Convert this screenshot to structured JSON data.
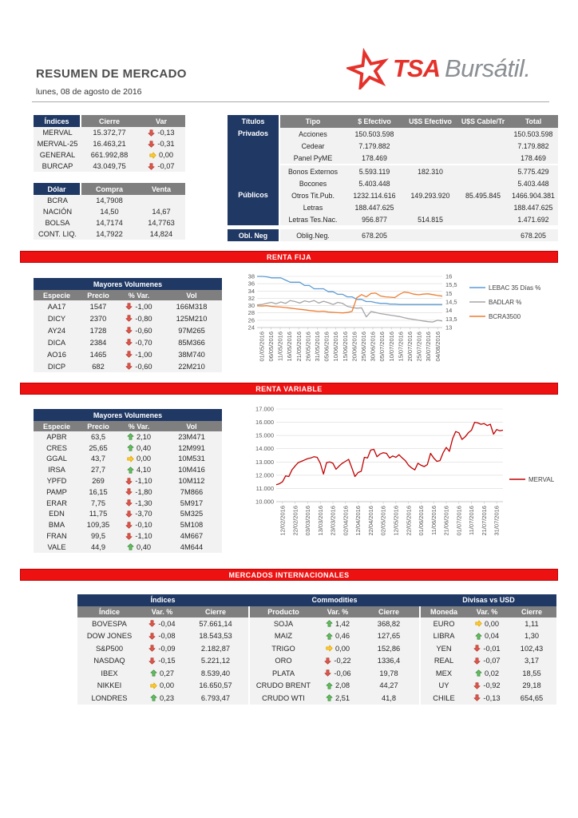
{
  "header": {
    "title": "RESUMEN DE MERCADO",
    "date": "lunes, 08 de agosto de 2016",
    "logo": {
      "star_icon": "tsa-star-logo",
      "tsa": "TSA",
      "bursatil": "Bursátil."
    }
  },
  "colors": {
    "navy": "#1F3864",
    "gray_header": "#7F7F7F",
    "row_bg": "#F2F2F2",
    "section_red": "#EE1111",
    "section_red_border": "#C00000",
    "logo_red": "#E4322B",
    "arrow_up": "#63BE5C",
    "arrow_up_border": "#3E8E41",
    "arrow_down": "#E2574C",
    "arrow_down_border": "#B03A2E",
    "arrow_flat": "#FFC933",
    "arrow_flat_border": "#D9A400",
    "chart_grid": "#D9D9D9",
    "merval_line": "#C00000"
  },
  "sections": {
    "renta_fija": {
      "band_label": "RENTA FIJA"
    },
    "renta_variable": {
      "band_label": "RENTA VARIABLE"
    },
    "internacionales": {
      "band_label": "MERCADOS INTERNACIONALES"
    }
  },
  "indices_table": {
    "headers": [
      "Índices",
      "Cierre",
      "Var"
    ],
    "rows": [
      [
        "MERVAL",
        "15.372,77",
        {
          "dir": "down",
          "v": "-0,13"
        }
      ],
      [
        "MERVAL-25",
        "16.463,21",
        {
          "dir": "down",
          "v": "-0,31"
        }
      ],
      [
        "GENERAL",
        "661.992,88",
        {
          "dir": "flat",
          "v": "0,00"
        }
      ],
      [
        "BURCAP",
        "43.049,75",
        {
          "dir": "down",
          "v": "-0,07"
        }
      ]
    ]
  },
  "dolar_table": {
    "headers": [
      "Dólar",
      "Compra",
      "Venta"
    ],
    "rows": [
      [
        "BCRA",
        "14,7908",
        ""
      ],
      [
        "NACIÓN",
        "14,50",
        "14,67"
      ],
      [
        "BOLSA",
        "14,7174",
        "14,7763"
      ],
      [
        "CONT. LIQ.",
        "14,7922",
        "14,824"
      ]
    ]
  },
  "titulos_table": {
    "corner": "Títulos",
    "headers": [
      "Tipo",
      "$ Efectivo",
      "U$S Efectivo",
      "U$S Cable/Tr",
      "Total"
    ],
    "groups": [
      {
        "label": "Privados",
        "rows": [
          [
            "Acciones",
            "150.503.598",
            "",
            "",
            "150.503.598"
          ],
          [
            "Cedear",
            "7.179.882",
            "",
            "",
            "7.179.882"
          ],
          [
            "Panel PyME",
            "178.469",
            "",
            "",
            "178.469"
          ]
        ]
      },
      {
        "label": "Públicos",
        "rows": [
          [
            "Bonos Externos",
            "5.593.119",
            "182.310",
            "",
            "5.775.429"
          ],
          [
            "Bocones",
            "5.403.448",
            "",
            "",
            "5.403.448"
          ],
          [
            "Otros Tit.Pub.",
            "1232.114.616",
            "149.293.920",
            "85.495.845",
            "1466.904.381"
          ],
          [
            "Letras",
            "188.447.625",
            "",
            "",
            "188.447.625"
          ],
          [
            "Letras Tes.Nac.",
            "956.877",
            "514.815",
            "",
            "1.471.692"
          ]
        ]
      },
      {
        "label": "Obl. Neg",
        "rows": [
          [
            "Oblig.Neg.",
            "678.205",
            "",
            "",
            "678.205"
          ]
        ]
      }
    ]
  },
  "renta_fija_table": {
    "title": "Mayores Volumenes",
    "headers": [
      "Especie",
      "Precio",
      "% Var.",
      "Vol"
    ],
    "rows": [
      [
        "AA17",
        "1547",
        {
          "dir": "down",
          "v": "-1,00"
        },
        "166M318"
      ],
      [
        "DICY",
        "2370",
        {
          "dir": "down",
          "v": "-0,80"
        },
        "125M210"
      ],
      [
        "AY24",
        "1728",
        {
          "dir": "down",
          "v": "-0,60"
        },
        "97M265"
      ],
      [
        "DICA",
        "2384",
        {
          "dir": "down",
          "v": "-0,70"
        },
        "85M366"
      ],
      [
        "AO16",
        "1465",
        {
          "dir": "down",
          "v": "-1,00"
        },
        "38M740"
      ],
      [
        "DICP",
        "682",
        {
          "dir": "down",
          "v": "-0,60"
        },
        "22M210"
      ]
    ]
  },
  "renta_variable_table": {
    "title": "Mayores Volumenes",
    "headers": [
      "Especie",
      "Precio",
      "% Var.",
      "Vol"
    ],
    "rows": [
      [
        "APBR",
        "63,5",
        {
          "dir": "up",
          "v": "2,10"
        },
        "23M471"
      ],
      [
        "CRES",
        "25,65",
        {
          "dir": "up",
          "v": "0,40"
        },
        "12M991"
      ],
      [
        "GGAL",
        "43,7",
        {
          "dir": "flat",
          "v": "0,00"
        },
        "10M531"
      ],
      [
        "IRSA",
        "27,7",
        {
          "dir": "up",
          "v": "4,10"
        },
        "10M416"
      ],
      [
        "YPFD",
        "269",
        {
          "dir": "down",
          "v": "-1,10"
        },
        "10M112"
      ],
      [
        "PAMP",
        "16,15",
        {
          "dir": "down",
          "v": "-1,80"
        },
        "7M866"
      ],
      [
        "ERAR",
        "7,75",
        {
          "dir": "down",
          "v": "-1,30"
        },
        "5M917"
      ],
      [
        "EDN",
        "11,75",
        {
          "dir": "down",
          "v": "-3,70"
        },
        "5M325"
      ],
      [
        "BMA",
        "109,35",
        {
          "dir": "down",
          "v": "-0,10"
        },
        "5M108"
      ],
      [
        "FRAN",
        "99,5",
        {
          "dir": "down",
          "v": "-1,10"
        },
        "4M667"
      ],
      [
        "VALE",
        "44,9",
        {
          "dir": "up",
          "v": "0,40"
        },
        "4M644"
      ]
    ]
  },
  "internacionales_table": {
    "groups": [
      {
        "title": "Índices",
        "headers": [
          "Índice",
          "Var. %",
          "Cierre"
        ],
        "rows": [
          [
            "BOVESPA",
            {
              "dir": "down",
              "v": "-0,04"
            },
            "57.661,14"
          ],
          [
            "DOW JONES",
            {
              "dir": "down",
              "v": "-0,08"
            },
            "18.543,53"
          ],
          [
            "S&P500",
            {
              "dir": "down",
              "v": "-0,09"
            },
            "2.182,87"
          ],
          [
            "NASDAQ",
            {
              "dir": "down",
              "v": "-0,15"
            },
            "5.221,12"
          ],
          [
            "IBEX",
            {
              "dir": "up",
              "v": "0,27"
            },
            "8.539,40"
          ],
          [
            "NIKKEI",
            {
              "dir": "flat",
              "v": "0,00"
            },
            "16.650,57"
          ],
          [
            "LONDRES",
            {
              "dir": "up",
              "v": "0,23"
            },
            "6.793,47"
          ]
        ]
      },
      {
        "title": "Commodities",
        "headers": [
          "Producto",
          "Var. %",
          "Cierre"
        ],
        "rows": [
          [
            "SOJA",
            {
              "dir": "up",
              "v": "1,42"
            },
            "368,82"
          ],
          [
            "MAIZ",
            {
              "dir": "up",
              "v": "0,46"
            },
            "127,65"
          ],
          [
            "TRIGO",
            {
              "dir": "flat",
              "v": "0,00"
            },
            "152,86"
          ],
          [
            "ORO",
            {
              "dir": "down",
              "v": "-0,22"
            },
            "1336,4"
          ],
          [
            "PLATA",
            {
              "dir": "down",
              "v": "-0,06"
            },
            "19,78"
          ],
          [
            "CRUDO BRENT",
            {
              "dir": "up",
              "v": "2,08"
            },
            "44,27"
          ],
          [
            "CRUDO WTI",
            {
              "dir": "up",
              "v": "2,51"
            },
            "41,8"
          ]
        ]
      },
      {
        "title": "Divisas vs USD",
        "headers": [
          "Moneda",
          "Var. %",
          "Cierre"
        ],
        "rows": [
          [
            "EURO",
            {
              "dir": "flat",
              "v": "0,00"
            },
            "1,11"
          ],
          [
            "LIBRA",
            {
              "dir": "up",
              "v": "0,04"
            },
            "1,30"
          ],
          [
            "YEN",
            {
              "dir": "down",
              "v": "-0,01"
            },
            "102,43"
          ],
          [
            "REAL",
            {
              "dir": "down",
              "v": "-0,07"
            },
            "3,17"
          ],
          [
            "MEX",
            {
              "dir": "up",
              "v": "0,02"
            },
            "18,55"
          ],
          [
            "UY",
            {
              "dir": "down",
              "v": "-0,92"
            },
            "29,18"
          ],
          [
            "CHILE",
            {
              "dir": "down",
              "v": "-0,13"
            },
            "654,65"
          ]
        ]
      }
    ]
  },
  "chart_data": [
    {
      "type": "line",
      "title": "",
      "xlabel": "",
      "ylabel": "",
      "legend_position": "right",
      "grid": true,
      "x_labels": [
        "01/05/2016",
        "06/05/2016",
        "11/05/2016",
        "16/05/2016",
        "21/05/2016",
        "26/05/2016",
        "31/05/2016",
        "05/06/2016",
        "10/06/2016",
        "15/06/2016",
        "20/06/2016",
        "25/06/2016",
        "30/06/2016",
        "05/07/2016",
        "10/07/2016",
        "15/07/2016",
        "20/07/2016",
        "25/07/2016",
        "30/07/2016",
        "04/08/2016"
      ],
      "y_left": {
        "min": 24,
        "max": 38,
        "ticks": [
          {
            "v": 38,
            "label": "38"
          },
          {
            "v": 36,
            "label": "36"
          },
          {
            "v": 34,
            "label": "34"
          },
          {
            "v": 32,
            "label": "32"
          },
          {
            "v": 30,
            "label": "30"
          },
          {
            "v": 28,
            "label": "28"
          },
          {
            "v": 26,
            "label": "26"
          },
          {
            "v": 24,
            "label": "24"
          }
        ]
      },
      "y_right": {
        "min": 13,
        "max": 16,
        "ticks": [
          {
            "v": 16,
            "label": "16"
          },
          {
            "v": 15.5,
            "label": "15,5"
          },
          {
            "v": 15,
            "label": "15"
          },
          {
            "v": 14.5,
            "label": "14,5"
          },
          {
            "v": 14,
            "label": "14"
          },
          {
            "v": 13.5,
            "label": "13,5"
          },
          {
            "v": 13,
            "label": "13"
          }
        ]
      },
      "series": [
        {
          "name": "LEBAC 35 Días %",
          "color": "#5B9BD5",
          "axis": "left",
          "values": [
            38,
            38,
            37.9,
            37.6,
            37.6,
            37.6,
            37.0,
            36.4,
            36.4,
            36.4,
            35.5,
            35.5,
            34.6,
            34.6,
            34.6,
            33.8,
            33.8,
            33.1,
            33.1,
            32.4,
            32.4,
            31.7,
            31.7,
            31.1,
            31.1,
            30.8,
            30.6,
            30.6,
            30.4,
            30.4,
            30.3,
            30.3,
            30.3,
            30.3,
            30.3,
            30.3,
            30.3,
            30.3,
            30.3,
            30.3
          ]
        },
        {
          "name": "BADLAR %",
          "color": "#A5A5A5",
          "axis": "left",
          "values": [
            30.2,
            30.3,
            30.6,
            30.9,
            30.5,
            31.0,
            30.6,
            31.4,
            31.1,
            30.7,
            31.3,
            31.0,
            31.4,
            30.7,
            31.2,
            30.8,
            30.3,
            30.9,
            30.6,
            29.8,
            29.5,
            29.3,
            29.4,
            26.9,
            28.4,
            28.1,
            27.8,
            27.6,
            27.4,
            27.2,
            27.0,
            26.7,
            26.4,
            26.2,
            26.0,
            25.8,
            25.6,
            25.5,
            26.0,
            25.8
          ]
        },
        {
          "name": "BCRA3500",
          "color": "#ED7D31",
          "axis": "right",
          "values": [
            14.27,
            14.26,
            14.28,
            14.24,
            14.22,
            14.2,
            14.17,
            14.14,
            14.1,
            14.07,
            14.04,
            14.0,
            13.97,
            13.94,
            13.96,
            13.91,
            13.89,
            13.87,
            13.86,
            13.88,
            13.95,
            14.75,
            14.93,
            14.8,
            15.0,
            15.02,
            14.85,
            14.8,
            14.78,
            14.76,
            14.95,
            15.08,
            15.04,
            14.96,
            14.92,
            14.96,
            14.98,
            14.93,
            14.88,
            14.84
          ]
        }
      ]
    },
    {
      "type": "line",
      "title": "",
      "xlabel": "",
      "ylabel": "",
      "legend_position": "right",
      "grid": true,
      "x_labels": [
        "12/02/2016",
        "22/02/2016",
        "03/03/2016",
        "13/03/2016",
        "23/03/2016",
        "02/04/2016",
        "12/04/2016",
        "22/04/2016",
        "02/05/2016",
        "12/05/2016",
        "22/05/2016",
        "01/06/2016",
        "11/06/2016",
        "21/06/2016",
        "01/07/2016",
        "11/07/2016",
        "21/07/2016",
        "31/07/2016"
      ],
      "y_left": {
        "min": 10000,
        "max": 17000,
        "ticks": [
          {
            "v": 17000,
            "label": "17.000"
          },
          {
            "v": 16000,
            "label": "16.000"
          },
          {
            "v": 15000,
            "label": "15.000"
          },
          {
            "v": 14000,
            "label": "14.000"
          },
          {
            "v": 13000,
            "label": "13.000"
          },
          {
            "v": 12000,
            "label": "12.000"
          },
          {
            "v": 11000,
            "label": "11.000"
          },
          {
            "v": 10000,
            "label": "10.000"
          }
        ]
      },
      "y_right": null,
      "series": [
        {
          "name": "MERVAL",
          "color": "#C00000",
          "axis": "left",
          "values": [
            11280,
            11350,
            11500,
            11950,
            11900,
            12400,
            12700,
            12950,
            13050,
            13150,
            13250,
            13300,
            13400,
            13350,
            12900,
            12080,
            12950,
            13000,
            12900,
            12450,
            12700,
            12900,
            13050,
            13200,
            12550,
            11900,
            12200,
            12300,
            13350,
            13300,
            13900,
            13950,
            13400,
            13600,
            13700,
            13650,
            13300,
            13450,
            13350,
            13550,
            13300,
            13100,
            12750,
            12550,
            12400,
            12900,
            12750,
            12650,
            12800,
            13650,
            13300,
            13050,
            13100,
            13700,
            14100,
            13800,
            14750,
            15300,
            15200,
            14700,
            14900,
            15200,
            15400,
            16000,
            15950,
            15850,
            15900,
            15750,
            15850,
            15100,
            15450,
            15350,
            15400
          ]
        }
      ]
    }
  ]
}
